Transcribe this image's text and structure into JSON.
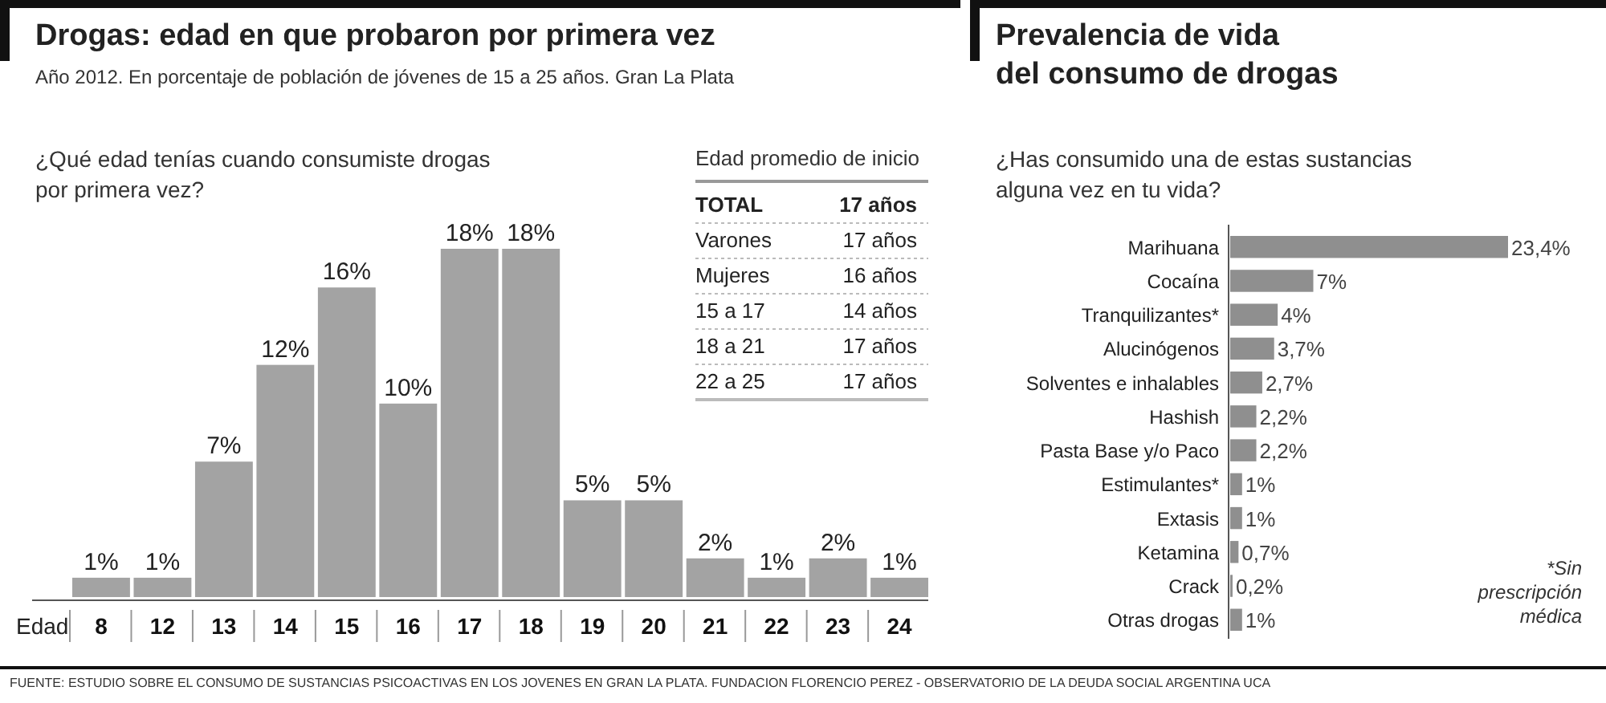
{
  "chart_data": [
    {
      "type": "bar",
      "title": "Drogas: edad en que probaron por primera vez",
      "subtitle": "Año 2012. En porcentaje de población de jóvenes de 15 a 25 años. Gran La Plata",
      "xlabel": "Edad",
      "annotations": [
        "¿Qué edad tenías cuando consumiste drogas\npor primera vez?",
        "FUENTE: ESTUDIO SOBRE EL CONSUMO DE SUSTANCIAS PSICOACTIVAS EN LOS JOVENES EN GRAN LA PLATA. FUNDACION FLORENCIO PEREZ - OBSERVATORIO DE LA DEUDA SOCIAL ARGENTINA UCA"
      ],
      "categories": [
        "8",
        "12",
        "13",
        "14",
        "15",
        "16",
        "17",
        "18",
        "19",
        "20",
        "21",
        "22",
        "23",
        "24"
      ],
      "values": [
        1,
        1,
        7,
        12,
        16,
        10,
        18,
        18,
        5,
        5,
        2,
        1,
        2,
        1
      ],
      "value_labels": [
        "1%",
        "1%",
        "7%",
        "12%",
        "16%",
        "10%",
        "18%",
        "18%",
        "5%",
        "5%",
        "2%",
        "1%",
        "2%",
        "1%"
      ],
      "color": "#a3a3a3"
    },
    {
      "type": "other",
      "title": "Edad promedio de inicio",
      "annotations": [
        "TOTAL",
        "17 años",
        "Varones",
        "17 años",
        "Mujeres",
        "16 años",
        "15 a 17",
        "14 años",
        "18 a 21",
        "17 años",
        "22 a 25",
        "17 años"
      ]
    },
    {
      "type": "bar",
      "orientation": "horizontal",
      "title": "Prevalencia de vida\ndel consumo de drogas",
      "annotations": [
        "¿Has consumido una de estas sustancias\nalguna vez en tu vida?",
        "*Sin\nprescripción\nmédica"
      ],
      "categories": [
        "Marihuana",
        "Cocaína",
        "Tranquilizantes*",
        "Alucinógenos",
        "Solventes e inhalables",
        "Hashish",
        "Pasta Base y/o Paco",
        "Estimulantes*",
        "Extasis",
        "Ketamina",
        "Crack",
        "Otras drogas"
      ],
      "values": [
        23.4,
        7,
        4,
        3.7,
        2.7,
        2.2,
        2.2,
        1,
        1,
        0.7,
        0.2,
        1
      ],
      "value_labels": [
        "23,4%",
        "7%",
        "4%",
        "3,7%",
        "2,7%",
        "2,2%",
        "2,2%",
        "1%",
        "1%",
        "0,7%",
        "0,2%",
        "1%"
      ],
      "color": "#8f8f8f"
    }
  ]
}
